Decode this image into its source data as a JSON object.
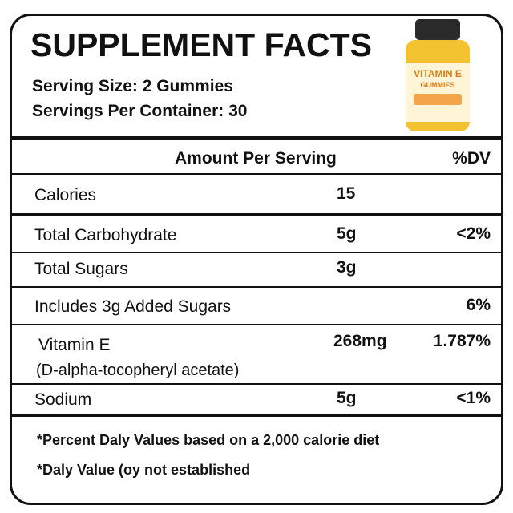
{
  "header": {
    "title": "SUPPLEMENT FACTS",
    "serving_size": "Serving Size: 2 Gummies",
    "servings_per_container": "Servings Per Container: 30"
  },
  "bottle": {
    "name": "VITAMIN E",
    "form": "GUMMIES"
  },
  "table": {
    "column_headers": {
      "amount": "Amount Per Serving",
      "dv": "%DV"
    },
    "rows": [
      {
        "label": "Calories",
        "amount": "15"
      },
      {
        "label": "Total Carbohydrate",
        "amount": "5g",
        "dv": "<2%"
      },
      {
        "label": "Total Sugars",
        "amount": "3g"
      },
      {
        "label": "Includes 3g Added Sugars",
        "dv": "6%"
      },
      {
        "label": "Vitamin E",
        "sublabel": "(D-alpha-tocopheryl acetate)",
        "amount": "268mg",
        "dv": "1.787%"
      },
      {
        "label": "Sodium",
        "amount": "5g",
        "dv": "<1%"
      }
    ]
  },
  "footnotes": [
    "*Percent Daly Values based on a 2,000 calorie diet",
    "*Daly Value (oy not established"
  ]
}
